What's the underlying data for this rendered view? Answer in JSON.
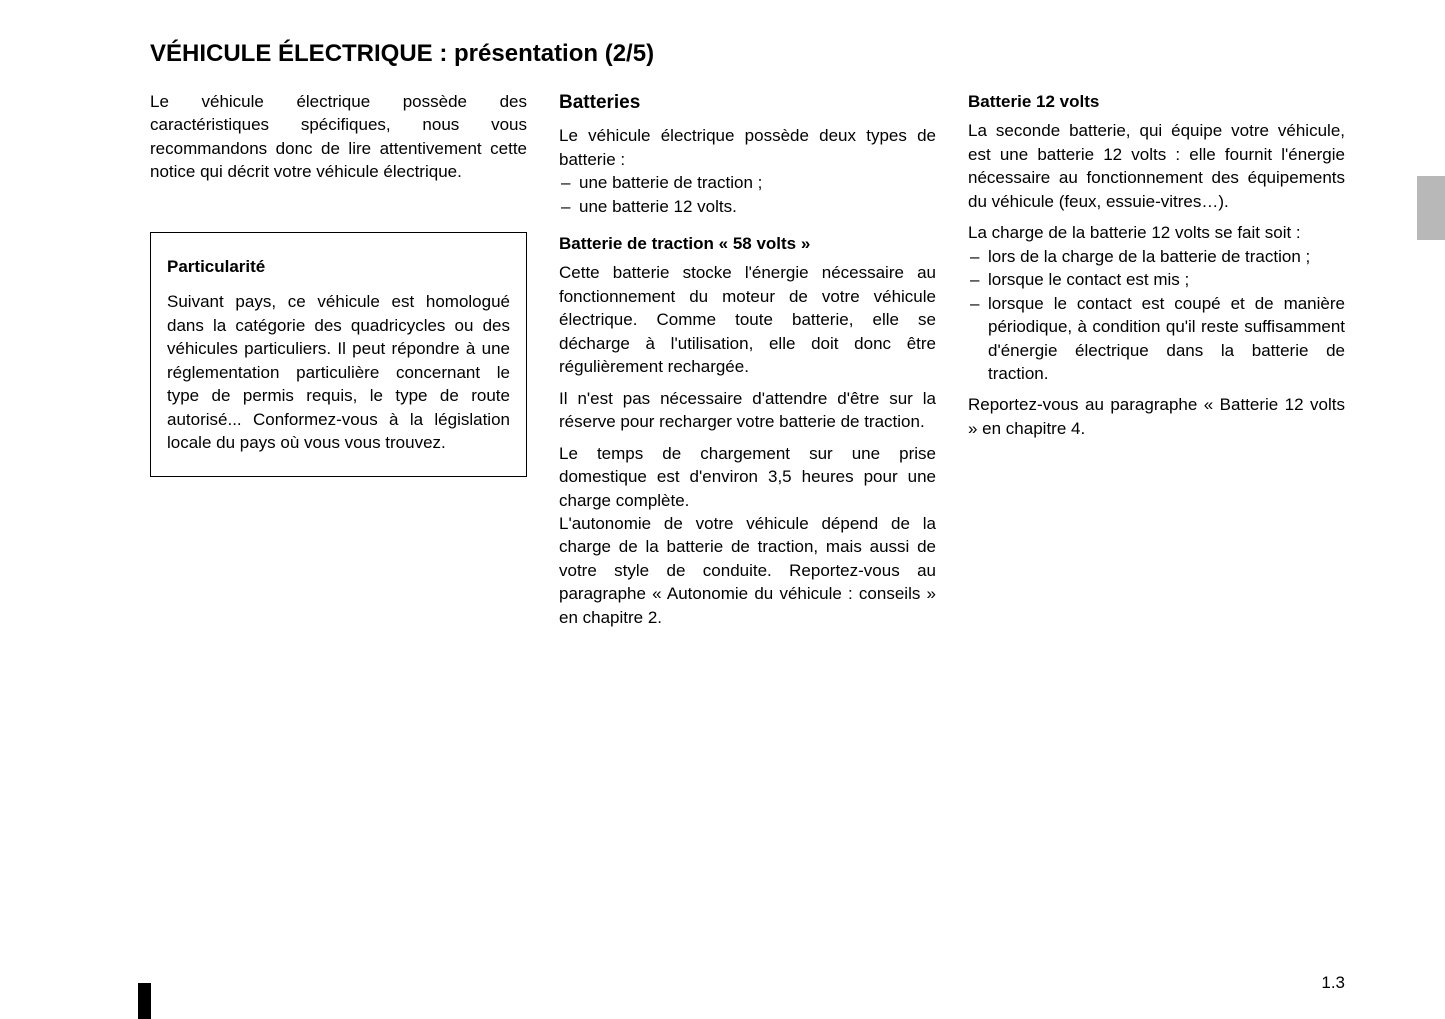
{
  "title": "VÉHICULE ÉLECTRIQUE : présentation (2/5)",
  "col1": {
    "intro": "Le véhicule électrique possède des caractéristiques spécifiques, nous vous recommandons donc de lire attentivement cette notice qui décrit votre véhicule électrique.",
    "box_title": "Particularité",
    "box_body": "Suivant pays, ce véhicule est homologué dans la catégorie des quadricycles ou des véhicules particuliers. Il peut répondre à une réglementation particulière concernant le type de permis requis, le type de route autorisé... Conformez-vous à la législation locale du pays où vous vous trouvez."
  },
  "col2": {
    "heading": "Batteries",
    "intro": "Le véhicule électrique possède deux types de batterie :",
    "bullets": [
      "une batterie de traction ;",
      "une batterie 12 volts."
    ],
    "sub1": "Batterie de traction « 58 volts »",
    "p1": "Cette batterie stocke l'énergie nécessaire au fonctionnement du moteur de votre véhicule électrique. Comme toute batterie, elle se décharge à l'utilisation, elle doit donc être régulièrement rechargée.",
    "p2": "Il n'est pas nécessaire d'attendre d'être sur la réserve pour recharger votre batterie de traction.",
    "p3": "Le temps de chargement sur une prise domestique est d'environ 3,5 heures pour une charge complète.",
    "p4": "L'autonomie de votre véhicule dépend de la charge de la batterie de traction, mais aussi de votre style de conduite. Reportez-vous au paragraphe « Autonomie du véhicule : conseils » en chapitre 2."
  },
  "col3": {
    "sub": "Batterie 12 volts",
    "p1": "La seconde batterie, qui équipe votre véhicule, est une batterie 12 volts : elle fournit l'énergie nécessaire au fonctionnement des équipements du véhicule (feux, essuie-vitres…).",
    "p2": "La charge de la batterie 12 volts se fait soit :",
    "bullets": [
      "lors de la charge de la batterie de traction ;",
      "lorsque le contact est mis ;",
      "lorsque le contact est coupé et de manière périodique, à condition qu'il reste suffisamment d'énergie électrique dans la batterie de traction."
    ],
    "p3": "Reportez-vous au paragraphe « Batterie 12 volts » en chapitre 4."
  },
  "page_number": "1.3",
  "colors": {
    "page_bg": "#ffffff",
    "text": "#000000",
    "side_tab": "#b8b8b8"
  },
  "typography": {
    "title_fontsize": 24,
    "body_fontsize": 17,
    "heading_fontsize": 19,
    "font_family": "Arial, Helvetica, sans-serif"
  }
}
